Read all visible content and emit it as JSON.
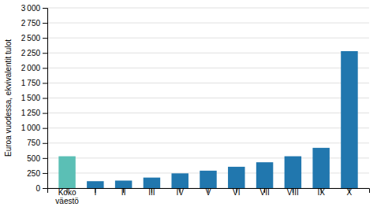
{
  "chart_data": {
    "type": "bar",
    "categories": [
      "Koko\nväestö",
      "I",
      "II",
      "III",
      "IV",
      "V",
      "VI",
      "VII",
      "VIII",
      "IX",
      "X"
    ],
    "values": [
      530,
      115,
      125,
      175,
      245,
      290,
      355,
      430,
      530,
      670,
      2280
    ],
    "colors": [
      "#5bbfb5",
      "#2177ae",
      "#2177ae",
      "#2177ae",
      "#2177ae",
      "#2177ae",
      "#2177ae",
      "#2177ae",
      "#2177ae",
      "#2177ae",
      "#2177ae"
    ],
    "ylabel": "Euroa vuodessa, ekvivalentit tulot",
    "ylim": [
      0,
      3000
    ],
    "yticks": [
      0,
      250,
      500,
      750,
      {
        "value": 1000,
        "label": "1 000"
      },
      {
        "value": 1250,
        "label": "1 250"
      },
      {
        "value": 1500,
        "label": "1 500"
      },
      {
        "value": 1750,
        "label": "1 750"
      },
      {
        "value": 2000,
        "label": "2 000"
      },
      {
        "value": 2250,
        "label": "2 250"
      },
      {
        "value": 2500,
        "label": "2 500"
      },
      {
        "value": 2750,
        "label": "2 750"
      },
      {
        "value": 3000,
        "label": "3 000"
      }
    ],
    "grid": true
  }
}
